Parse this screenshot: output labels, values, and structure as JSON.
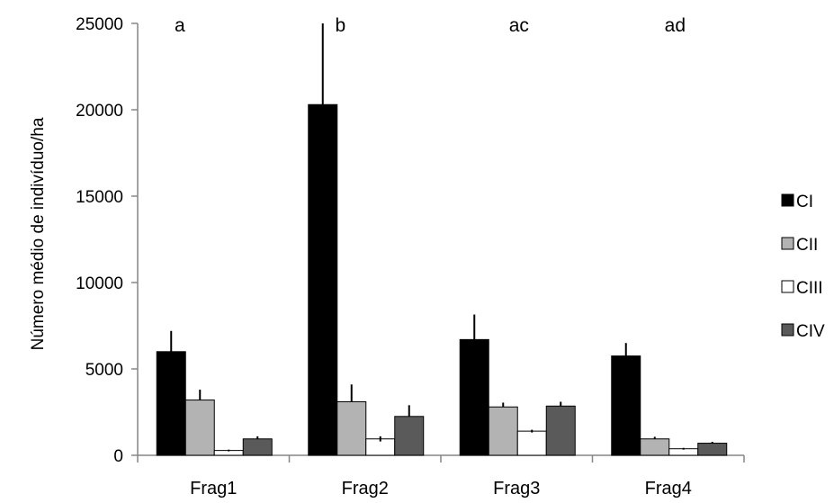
{
  "chart_data": {
    "type": "bar",
    "title": "",
    "xlabel": "",
    "ylabel": "Número médio de indivíduo/ha",
    "ylim": [
      0,
      25000
    ],
    "yticks": [
      0,
      5000,
      10000,
      15000,
      20000,
      25000
    ],
    "grid": false,
    "legend_position": "right",
    "categories": [
      "Frag1",
      "Frag2",
      "Frag3",
      "Frag4"
    ],
    "significance_letters": [
      "a",
      "b",
      "ac",
      "ad"
    ],
    "series": [
      {
        "name": "CI",
        "color": "#000000",
        "values": [
          6000,
          20300,
          6700,
          5750
        ],
        "errors": [
          1200,
          4800,
          1450,
          750
        ]
      },
      {
        "name": "CII",
        "color": "#b3b3b3",
        "values": [
          3200,
          3100,
          2800,
          950
        ],
        "errors": [
          600,
          1000,
          250,
          120
        ]
      },
      {
        "name": "CIII",
        "color": "#ffffff",
        "values": [
          280,
          950,
          1400,
          380
        ],
        "errors": [
          50,
          150,
          80,
          50
        ]
      },
      {
        "name": "CIV",
        "color": "#5a5a5a",
        "values": [
          950,
          2250,
          2850,
          700
        ],
        "errors": [
          150,
          650,
          250,
          80
        ]
      }
    ]
  }
}
